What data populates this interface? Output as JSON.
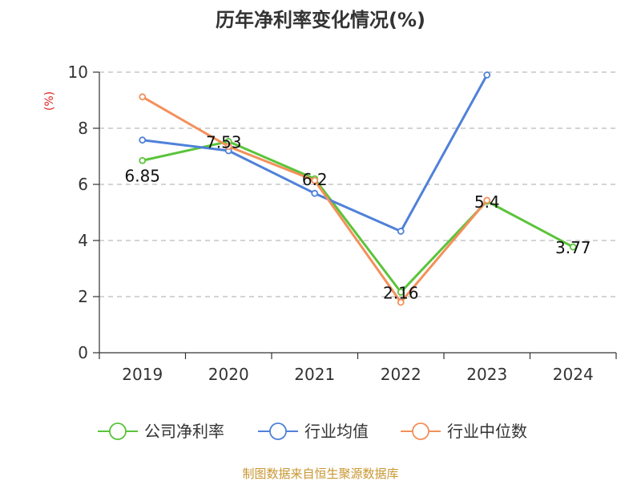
{
  "chart_data": {
    "type": "line",
    "title": "历年净利率变化情况(%)",
    "ylabel": "(%)",
    "ylim": [
      0,
      10
    ],
    "yticks": [
      "0",
      "2",
      "4",
      "6",
      "8",
      "10"
    ],
    "categories": [
      "2019",
      "2020",
      "2021",
      "2022",
      "2023",
      "2024"
    ],
    "grid": true,
    "legend_position": "bottom",
    "series": [
      {
        "name": "公司净利率",
        "color": "#5ac43a",
        "values": [
          6.85,
          7.53,
          6.2,
          2.16,
          5.4,
          3.77
        ],
        "labels": [
          "6.85",
          "7.53",
          "6.2",
          "2.16",
          "5.4",
          "3.77"
        ]
      },
      {
        "name": "行业均值",
        "color": "#4f81d9",
        "values": [
          7.58,
          7.2,
          5.68,
          4.33,
          9.9,
          null
        ]
      },
      {
        "name": "行业中位数",
        "color": "#f3905b",
        "values": [
          9.12,
          7.35,
          6.14,
          1.8,
          5.43,
          null
        ]
      }
    ]
  },
  "source": "制图数据来自恒生聚源数据库",
  "colors": {
    "source_text": "#c89632",
    "axis_unit": "#e02020",
    "grid": "#bbbbbb",
    "axis": "#333333"
  }
}
